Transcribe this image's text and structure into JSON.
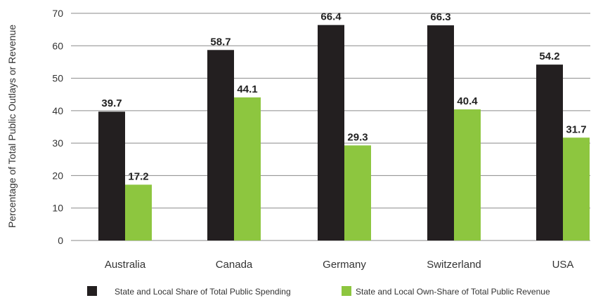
{
  "chart_data": {
    "type": "bar",
    "title": "",
    "xlabel": "",
    "ylabel": "Percentage of Total Public Outlays or Revenue",
    "ylim": [
      0,
      70
    ],
    "yticks": [
      0,
      10,
      20,
      30,
      40,
      50,
      60,
      70
    ],
    "grid": true,
    "legend_position": "bottom",
    "categories": [
      "Australia",
      "Canada",
      "Germany",
      "Switzerland",
      "USA"
    ],
    "series": [
      {
        "name": "State and Local Share of Total Public Spending",
        "color": "#231f20",
        "values": [
          39.7,
          58.7,
          66.4,
          66.3,
          54.2
        ],
        "labels": [
          "39.7",
          "58.7",
          "66.4",
          "66.3",
          "54.2"
        ]
      },
      {
        "name": "State and Local Own-Share of Total Public Revenue",
        "color": "#8dc63f",
        "values": [
          17.2,
          44.1,
          29.3,
          40.4,
          31.7
        ],
        "labels": [
          "17.2",
          "44.1",
          "29.3",
          "40.4",
          "31.7"
        ]
      }
    ]
  }
}
